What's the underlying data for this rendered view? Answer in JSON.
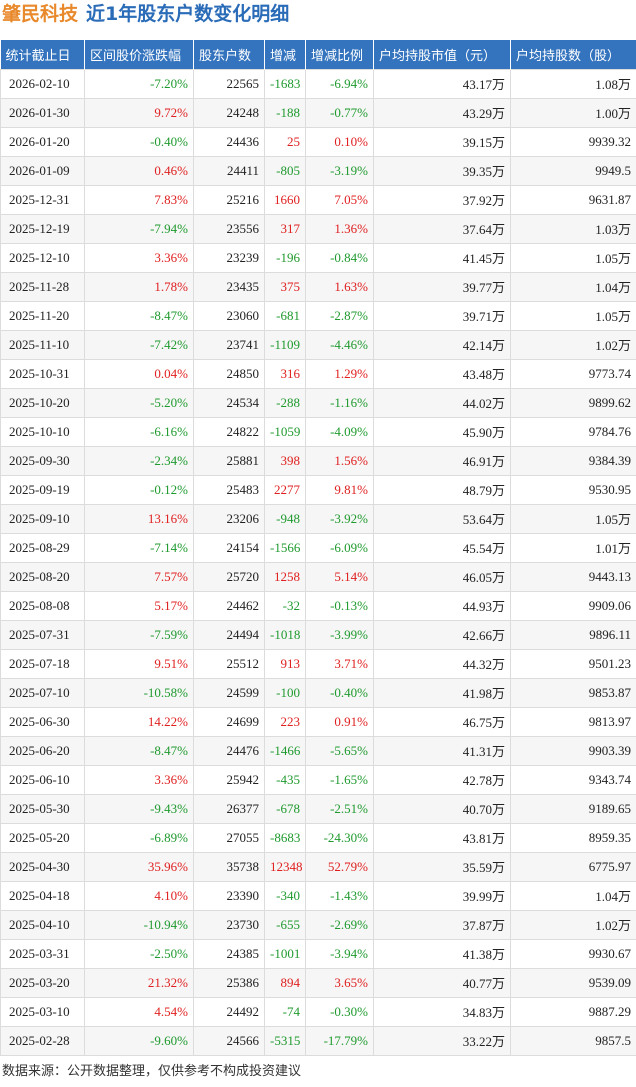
{
  "header": {
    "company": "肇民科技",
    "title": "近1年股东户数变化明细"
  },
  "table": {
    "columns": [
      "统计截止日",
      "区间股价涨跌幅",
      "股东户数",
      "增减",
      "增减比例",
      "户均持股市值（元）",
      "户均持股数（股）"
    ],
    "rows": [
      [
        "2026-02-10",
        "-7.20%",
        "22565",
        "-1683",
        "-6.94%",
        "43.17万",
        "1.08万"
      ],
      [
        "2026-01-30",
        "9.72%",
        "24248",
        "-188",
        "-0.77%",
        "43.29万",
        "1.00万"
      ],
      [
        "2026-01-20",
        "-0.40%",
        "24436",
        "25",
        "0.10%",
        "39.15万",
        "9939.32"
      ],
      [
        "2026-01-09",
        "0.46%",
        "24411",
        "-805",
        "-3.19%",
        "39.35万",
        "9949.5"
      ],
      [
        "2025-12-31",
        "7.83%",
        "25216",
        "1660",
        "7.05%",
        "37.92万",
        "9631.87"
      ],
      [
        "2025-12-19",
        "-7.94%",
        "23556",
        "317",
        "1.36%",
        "37.64万",
        "1.03万"
      ],
      [
        "2025-12-10",
        "3.36%",
        "23239",
        "-196",
        "-0.84%",
        "41.45万",
        "1.05万"
      ],
      [
        "2025-11-28",
        "1.78%",
        "23435",
        "375",
        "1.63%",
        "39.77万",
        "1.04万"
      ],
      [
        "2025-11-20",
        "-8.47%",
        "23060",
        "-681",
        "-2.87%",
        "39.71万",
        "1.05万"
      ],
      [
        "2025-11-10",
        "-7.42%",
        "23741",
        "-1109",
        "-4.46%",
        "42.14万",
        "1.02万"
      ],
      [
        "2025-10-31",
        "0.04%",
        "24850",
        "316",
        "1.29%",
        "43.48万",
        "9773.74"
      ],
      [
        "2025-10-20",
        "-5.20%",
        "24534",
        "-288",
        "-1.16%",
        "44.02万",
        "9899.62"
      ],
      [
        "2025-10-10",
        "-6.16%",
        "24822",
        "-1059",
        "-4.09%",
        "45.90万",
        "9784.76"
      ],
      [
        "2025-09-30",
        "-2.34%",
        "25881",
        "398",
        "1.56%",
        "46.91万",
        "9384.39"
      ],
      [
        "2025-09-19",
        "-0.12%",
        "25483",
        "2277",
        "9.81%",
        "48.79万",
        "9530.95"
      ],
      [
        "2025-09-10",
        "13.16%",
        "23206",
        "-948",
        "-3.92%",
        "53.64万",
        "1.05万"
      ],
      [
        "2025-08-29",
        "-7.14%",
        "24154",
        "-1566",
        "-6.09%",
        "45.54万",
        "1.01万"
      ],
      [
        "2025-08-20",
        "7.57%",
        "25720",
        "1258",
        "5.14%",
        "46.05万",
        "9443.13"
      ],
      [
        "2025-08-08",
        "5.17%",
        "24462",
        "-32",
        "-0.13%",
        "44.93万",
        "9909.06"
      ],
      [
        "2025-07-31",
        "-7.59%",
        "24494",
        "-1018",
        "-3.99%",
        "42.66万",
        "9896.11"
      ],
      [
        "2025-07-18",
        "9.51%",
        "25512",
        "913",
        "3.71%",
        "44.32万",
        "9501.23"
      ],
      [
        "2025-07-10",
        "-10.58%",
        "24599",
        "-100",
        "-0.40%",
        "41.98万",
        "9853.87"
      ],
      [
        "2025-06-30",
        "14.22%",
        "24699",
        "223",
        "0.91%",
        "46.75万",
        "9813.97"
      ],
      [
        "2025-06-20",
        "-8.47%",
        "24476",
        "-1466",
        "-5.65%",
        "41.31万",
        "9903.39"
      ],
      [
        "2025-06-10",
        "3.36%",
        "25942",
        "-435",
        "-1.65%",
        "42.78万",
        "9343.74"
      ],
      [
        "2025-05-30",
        "-9.43%",
        "26377",
        "-678",
        "-2.51%",
        "40.70万",
        "9189.65"
      ],
      [
        "2025-05-20",
        "-6.89%",
        "27055",
        "-8683",
        "-24.30%",
        "43.81万",
        "8959.35"
      ],
      [
        "2025-04-30",
        "35.96%",
        "35738",
        "12348",
        "52.79%",
        "35.59万",
        "6775.97"
      ],
      [
        "2025-04-18",
        "4.10%",
        "23390",
        "-340",
        "-1.43%",
        "39.99万",
        "1.04万"
      ],
      [
        "2025-04-10",
        "-10.94%",
        "23730",
        "-655",
        "-2.69%",
        "37.87万",
        "1.02万"
      ],
      [
        "2025-03-31",
        "-2.50%",
        "24385",
        "-1001",
        "-3.94%",
        "41.38万",
        "9930.67"
      ],
      [
        "2025-03-20",
        "21.32%",
        "25386",
        "894",
        "3.65%",
        "40.77万",
        "9539.09"
      ],
      [
        "2025-03-10",
        "4.54%",
        "24492",
        "-74",
        "-0.30%",
        "34.83万",
        "9887.29"
      ],
      [
        "2025-02-28",
        "-9.60%",
        "24566",
        "-5315",
        "-17.79%",
        "33.22万",
        "9857.5"
      ]
    ]
  },
  "footer": {
    "source": "数据来源：公开数据整理，仅供参考不构成投资建议"
  }
}
